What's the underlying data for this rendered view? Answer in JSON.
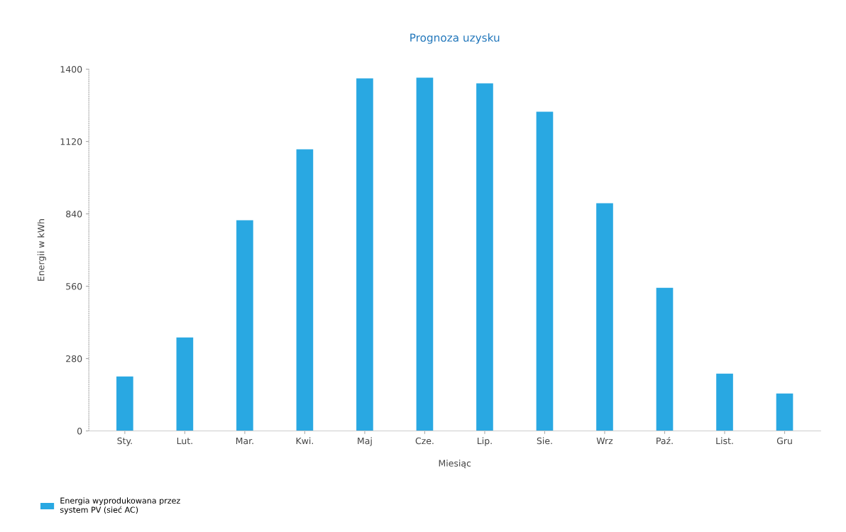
{
  "chart_data": {
    "type": "bar",
    "title": "Prognoza uzysku",
    "xlabel": "Miesiąc",
    "ylabel": "Energii w kWh",
    "categories": [
      "Sty.",
      "Lut.",
      "Mar.",
      "Kwi.",
      "Maj",
      "Cze.",
      "Lip.",
      "Sie.",
      "Wrz",
      "Paź.",
      "List.",
      "Gru"
    ],
    "series": [
      {
        "name": "Energia wyprodukowana przez\nsystem PV (sieć AC)",
        "color": "#29a8e2",
        "values": [
          211,
          362,
          815,
          1090,
          1364,
          1367,
          1345,
          1235,
          881,
          554,
          222,
          145
        ]
      }
    ],
    "ylim": [
      0,
      1400
    ],
    "yticks": [
      0,
      280,
      560,
      840,
      1120,
      1400
    ],
    "grid": false,
    "legend": "bottom left"
  }
}
